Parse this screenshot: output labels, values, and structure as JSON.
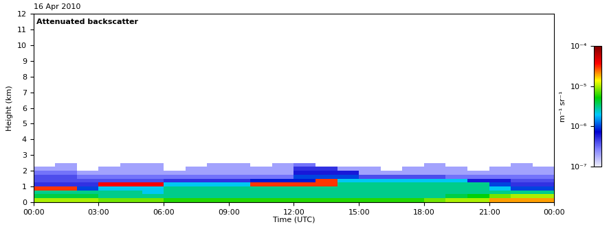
{
  "chart_data": {
    "type": "heatmap",
    "title": "Attenuated backscatter",
    "date": "16 Apr 2010",
    "x_label": "Time (UTC)",
    "y_label": "Height (km)",
    "colorbar_label": "m⁻¹ sr⁻¹",
    "xlim": [
      0,
      24
    ],
    "xticks": [
      {
        "value": 0,
        "label": "00:00"
      },
      {
        "value": 3,
        "label": "03:00"
      },
      {
        "value": 6,
        "label": "06:00"
      },
      {
        "value": 9,
        "label": "09:00"
      },
      {
        "value": 12,
        "label": "12:00"
      },
      {
        "value": 15,
        "label": "15:00"
      },
      {
        "value": 18,
        "label": "18:00"
      },
      {
        "value": 21,
        "label": "21:00"
      },
      {
        "value": 24,
        "label": "00:00"
      }
    ],
    "ylim": [
      0,
      12
    ],
    "yticks": [
      0,
      1,
      2,
      3,
      4,
      5,
      6,
      7,
      8,
      9,
      10,
      11,
      12
    ],
    "x_edges": [
      0,
      1,
      2,
      3,
      4,
      5,
      6,
      7,
      8,
      9,
      10,
      11,
      12,
      13,
      14,
      15,
      16,
      17,
      18,
      19,
      20,
      21,
      22,
      23,
      24
    ],
    "y_edges": [
      0,
      0.25,
      0.5,
      0.75,
      1.0,
      1.25,
      1.5,
      1.75,
      2.0,
      2.25,
      2.5
    ],
    "cells": [
      [
        1e-05,
        1e-05,
        1e-05,
        8e-06,
        8e-06,
        8e-06,
        6e-06,
        6e-06,
        6e-06,
        6e-06,
        6e-06,
        6e-06,
        6e-06,
        6e-06,
        6e-06,
        6e-06,
        6e-06,
        6e-06,
        8e-06,
        1e-05,
        1e-05,
        2e-05,
        2e-05,
        2e-05
      ],
      [
        4e-06,
        4e-06,
        4e-06,
        3e-06,
        3e-06,
        3e-06,
        3e-06,
        3e-06,
        3e-06,
        3e-06,
        3e-06,
        3e-06,
        3e-06,
        3e-06,
        3e-06,
        3e-06,
        3e-06,
        3e-06,
        3e-06,
        4e-06,
        5e-06,
        8e-06,
        1e-05,
        1e-05
      ],
      [
        3e-06,
        3e-06,
        3e-06,
        3e-06,
        3e-06,
        2e-06,
        3e-06,
        3e-06,
        3e-06,
        3e-06,
        3e-06,
        3e-06,
        3e-06,
        3e-06,
        3e-06,
        3e-06,
        3e-06,
        3e-06,
        3e-06,
        3e-06,
        3e-06,
        3e-06,
        3e-06,
        3e-06
      ],
      [
        3e-05,
        3e-05,
        1e-06,
        2e-06,
        2e-06,
        2e-06,
        3e-06,
        3e-06,
        3e-06,
        3e-06,
        3e-06,
        3e-06,
        3e-06,
        3e-06,
        3e-06,
        3e-06,
        3e-06,
        3e-06,
        3e-06,
        3e-06,
        3e-06,
        2e-06,
        1e-06,
        1e-06
      ],
      [
        5e-07,
        5e-07,
        5e-07,
        4e-05,
        4e-05,
        4e-05,
        2e-06,
        2e-06,
        2e-06,
        2e-06,
        3e-05,
        3e-05,
        3e-05,
        3e-05,
        3e-06,
        3e-06,
        3e-06,
        3e-06,
        3e-06,
        3e-06,
        3e-06,
        1e-06,
        5e-07,
        5e-07
      ],
      [
        4e-07,
        4e-07,
        4e-07,
        4e-07,
        4e-07,
        4e-07,
        5e-07,
        5e-07,
        5e-07,
        5e-07,
        8e-07,
        8e-07,
        8e-07,
        3e-05,
        2e-06,
        2e-06,
        2e-06,
        2e-06,
        2e-06,
        2e-06,
        6e-07,
        6e-07,
        4e-07,
        4e-07
      ],
      [
        4e-07,
        4e-07,
        3e-07,
        3e-07,
        3e-07,
        3e-07,
        3e-07,
        3e-07,
        3e-07,
        3e-07,
        3e-07,
        3e-07,
        1e-06,
        1e-06,
        1e-06,
        4e-07,
        4e-07,
        4e-07,
        4e-07,
        3e-07,
        3e-07,
        3e-07,
        3e-07,
        3e-07
      ],
      [
        3e-07,
        3e-07,
        2e-07,
        2e-07,
        2e-07,
        2e-07,
        2e-07,
        2e-07,
        2e-07,
        2e-07,
        2e-07,
        2e-07,
        6e-07,
        6e-07,
        6e-07,
        2e-07,
        2e-07,
        2e-07,
        2e-07,
        2e-07,
        2e-07,
        2e-07,
        2e-07,
        2e-07
      ],
      [
        2e-07,
        2e-07,
        null,
        2e-07,
        2e-07,
        2e-07,
        null,
        2e-07,
        2e-07,
        2e-07,
        2e-07,
        2e-07,
        5e-07,
        5e-07,
        2e-07,
        2e-07,
        null,
        2e-07,
        2e-07,
        2e-07,
        null,
        2e-07,
        2e-07,
        2e-07
      ],
      [
        null,
        2e-07,
        null,
        null,
        2e-07,
        2e-07,
        null,
        null,
        2e-07,
        2e-07,
        null,
        2e-07,
        3e-07,
        null,
        null,
        null,
        null,
        null,
        2e-07,
        null,
        null,
        null,
        2e-07,
        null
      ]
    ],
    "colorbar_range": [
      1e-07,
      0.0001
    ],
    "colorbar_ticks": [
      {
        "value": 1e-07,
        "label": "10⁻⁷"
      },
      {
        "value": 1e-06,
        "label": "10⁻⁶"
      },
      {
        "value": 1e-05,
        "label": "10⁻⁵"
      },
      {
        "value": 0.0001,
        "label": "10⁻⁴"
      }
    ]
  }
}
